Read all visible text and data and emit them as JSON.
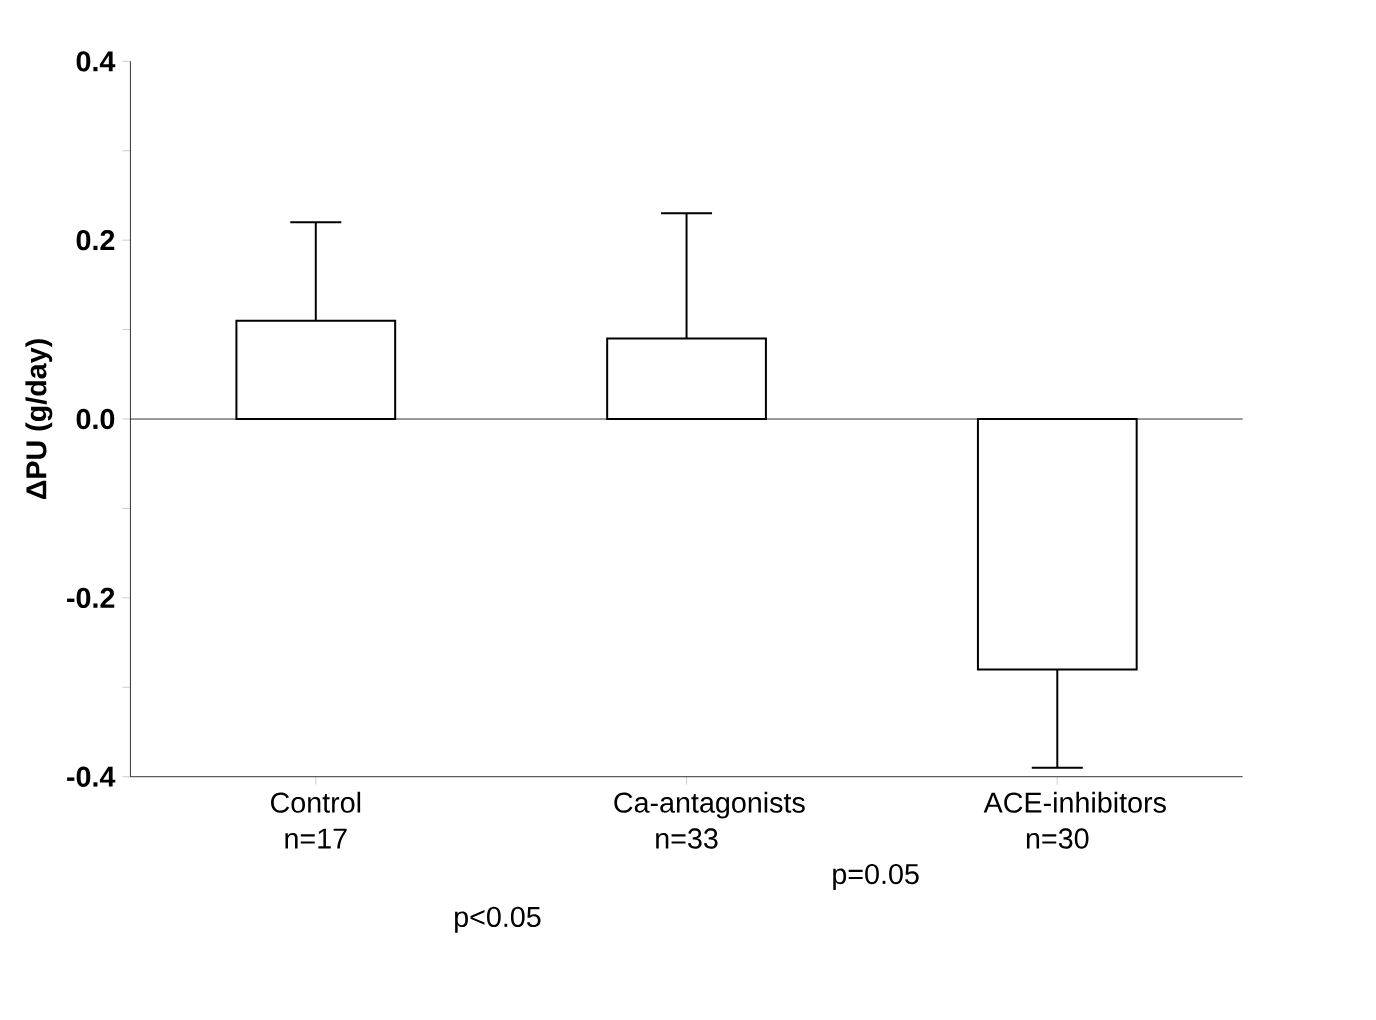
{
  "chart_data": {
    "type": "bar",
    "ylabel": "ΔPU (g/day)",
    "categories": [
      "Control n=17",
      "Ca-antagonists n=33",
      "ACE-inhibitors n=30"
    ],
    "values": [
      0.11,
      0.09,
      -0.28
    ],
    "errors": [
      [
        0.11,
        0.22
      ],
      [
        0.09,
        0.23
      ],
      [
        -0.39,
        -0.28
      ]
    ],
    "color": "#ffffff",
    "ylim": [
      -0.4,
      0.4
    ],
    "yticks": [
      {
        "value": -0.4,
        "label": "-0.4"
      },
      {
        "value": -0.3,
        "label": null
      },
      {
        "value": -0.2,
        "label": "-0.2"
      },
      {
        "value": -0.1,
        "label": null
      },
      {
        "value": 0.0,
        "label": "0.0"
      },
      {
        "value": 0.1,
        "label": null
      },
      {
        "value": 0.2,
        "label": "0.2"
      },
      {
        "value": 0.3,
        "label": null
      },
      {
        "value": 0.4,
        "label": "0.4"
      }
    ],
    "annotations": [
      "p<0.05",
      "p=0.05"
    ]
  }
}
